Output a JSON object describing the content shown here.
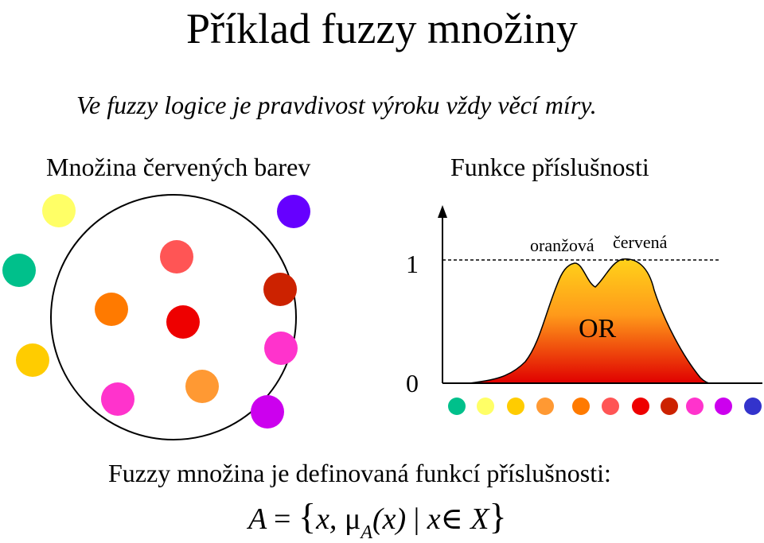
{
  "title": "Příklad fuzzy množiny",
  "subtitle": "Ve fuzzy logice je pravdivost výroku vždy věcí míry.",
  "set_heading": "Množina červených barev",
  "mf_heading": "Funkce příslušnosti",
  "axis": {
    "top_label": "1",
    "bottom_label": "0"
  },
  "curve_labels": {
    "orange": "oranžová",
    "red": "červená",
    "combined": "OR"
  },
  "definition": "Fuzzy množina je definovaná funkcí příslušnosti:",
  "formula": {
    "lhs": "A",
    "eq": "=",
    "open_brace": "{",
    "x": "x,",
    "mu": "μ",
    "mu_sub": "A",
    "arg": "(x)",
    "bar": "|",
    "x2": "x",
    "in": "∈",
    "set": "X",
    "close_brace": "}"
  },
  "colors": {
    "teal": "#00c08b",
    "yellow_light": "#ffff66",
    "yellow": "#ffcc00",
    "orange_light": "#ff9933",
    "orange": "#ff7a00",
    "salmon": "#ff5555",
    "red": "#ee0000",
    "dark_red": "#cc2200",
    "pink": "#ff33cc",
    "magenta": "#cc00ee",
    "violet": "#6600ff",
    "blue": "#3333cc"
  },
  "set_dots_inside": [
    "salmon",
    "orange",
    "red",
    "dark_red",
    "pink",
    "pink",
    "orange_light"
  ],
  "set_dots_outside": [
    "yellow_light",
    "teal",
    "yellow",
    "violet",
    "magenta"
  ],
  "color_scale": [
    "teal",
    "yellow_light",
    "yellow",
    "orange_light",
    "orange",
    "salmon",
    "red",
    "dark_red",
    "pink",
    "magenta",
    "blue"
  ]
}
